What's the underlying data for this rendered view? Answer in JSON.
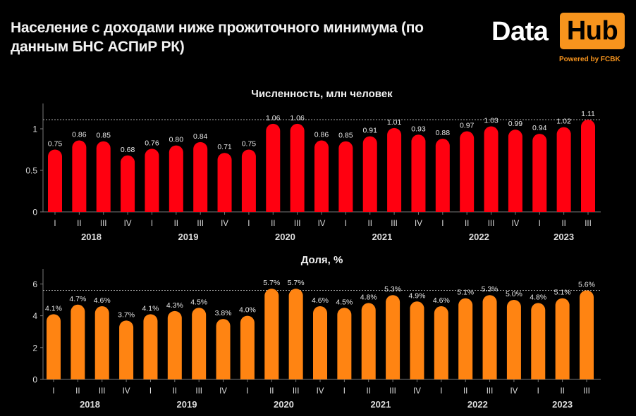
{
  "header": {
    "title": "Население с доходами ниже прожиточного минимума (по данным БНС АСПиР РК)"
  },
  "logo": {
    "data_text": "Data",
    "hub_text": "Hub",
    "powered_by": "Powered by FCBK",
    "accent_color": "#f7941d"
  },
  "chart_data": [
    {
      "type": "bar",
      "title": "Численность, млн человек",
      "xlabel": "",
      "ylabel": "",
      "ylim": [
        0,
        1.3
      ],
      "yticks": [
        0,
        0.5,
        1
      ],
      "ytick_labels": [
        "0",
        "0.5",
        "1"
      ],
      "grid": false,
      "reference_line": 1.11,
      "color": "#ff0010",
      "categories": [
        "I",
        "II",
        "III",
        "IV",
        "I",
        "II",
        "III",
        "IV",
        "I",
        "II",
        "III",
        "IV",
        "I",
        "II",
        "III",
        "IV",
        "I",
        "II",
        "III",
        "IV",
        "I",
        "II",
        "III"
      ],
      "year_groups": [
        {
          "label": "2018",
          "start": 0,
          "end": 3
        },
        {
          "label": "2019",
          "start": 4,
          "end": 7
        },
        {
          "label": "2020",
          "start": 8,
          "end": 11
        },
        {
          "label": "2021",
          "start": 12,
          "end": 15
        },
        {
          "label": "2022",
          "start": 16,
          "end": 19
        },
        {
          "label": "2023",
          "start": 20,
          "end": 22
        }
      ],
      "values": [
        0.75,
        0.86,
        0.85,
        0.68,
        0.76,
        0.8,
        0.84,
        0.71,
        0.75,
        1.06,
        1.06,
        0.86,
        0.85,
        0.91,
        1.01,
        0.93,
        0.88,
        0.97,
        1.03,
        0.99,
        0.94,
        1.02,
        1.11
      ],
      "labels": [
        "0.75",
        "0.86",
        "0.85",
        "0.68",
        "0.76",
        "0.80",
        "0.84",
        "0.71",
        "0.75",
        "1.06",
        "1.06",
        "0.86",
        "0.85",
        "0.91",
        "1.01",
        "0.93",
        "0.88",
        "0.97",
        "1.03",
        "0.99",
        "0.94",
        "1.02",
        "1.11"
      ]
    },
    {
      "type": "bar",
      "title": "Доля, %",
      "xlabel": "",
      "ylabel": "",
      "ylim": [
        0,
        7
      ],
      "yticks": [
        0,
        2,
        4,
        6
      ],
      "ytick_labels": [
        "0",
        "2",
        "4",
        "6"
      ],
      "grid": false,
      "reference_line": 5.6,
      "color": "#ff8412",
      "categories": [
        "I",
        "II",
        "III",
        "IV",
        "I",
        "II",
        "III",
        "IV",
        "I",
        "II",
        "III",
        "IV",
        "I",
        "II",
        "III",
        "IV",
        "I",
        "II",
        "III",
        "IV",
        "I",
        "II",
        "III"
      ],
      "year_groups": [
        {
          "label": "2018",
          "start": 0,
          "end": 3
        },
        {
          "label": "2019",
          "start": 4,
          "end": 7
        },
        {
          "label": "2020",
          "start": 8,
          "end": 11
        },
        {
          "label": "2021",
          "start": 12,
          "end": 15
        },
        {
          "label": "2022",
          "start": 16,
          "end": 19
        },
        {
          "label": "2023",
          "start": 20,
          "end": 22
        }
      ],
      "values": [
        4.1,
        4.7,
        4.6,
        3.7,
        4.1,
        4.3,
        4.5,
        3.8,
        4.0,
        5.7,
        5.7,
        4.6,
        4.5,
        4.8,
        5.3,
        4.9,
        4.6,
        5.1,
        5.3,
        5.0,
        4.8,
        5.1,
        5.6
      ],
      "labels": [
        "4.1%",
        "4.7%",
        "4.6%",
        "3.7%",
        "4.1%",
        "4.3%",
        "4.5%",
        "3.8%",
        "4.0%",
        "5.7%",
        "5.7%",
        "4.6%",
        "4.5%",
        "4.8%",
        "5.3%",
        "4.9%",
        "4.6%",
        "5.1%",
        "5.3%",
        "5.0%",
        "4.8%",
        "5.1%",
        "5.6%"
      ]
    }
  ]
}
